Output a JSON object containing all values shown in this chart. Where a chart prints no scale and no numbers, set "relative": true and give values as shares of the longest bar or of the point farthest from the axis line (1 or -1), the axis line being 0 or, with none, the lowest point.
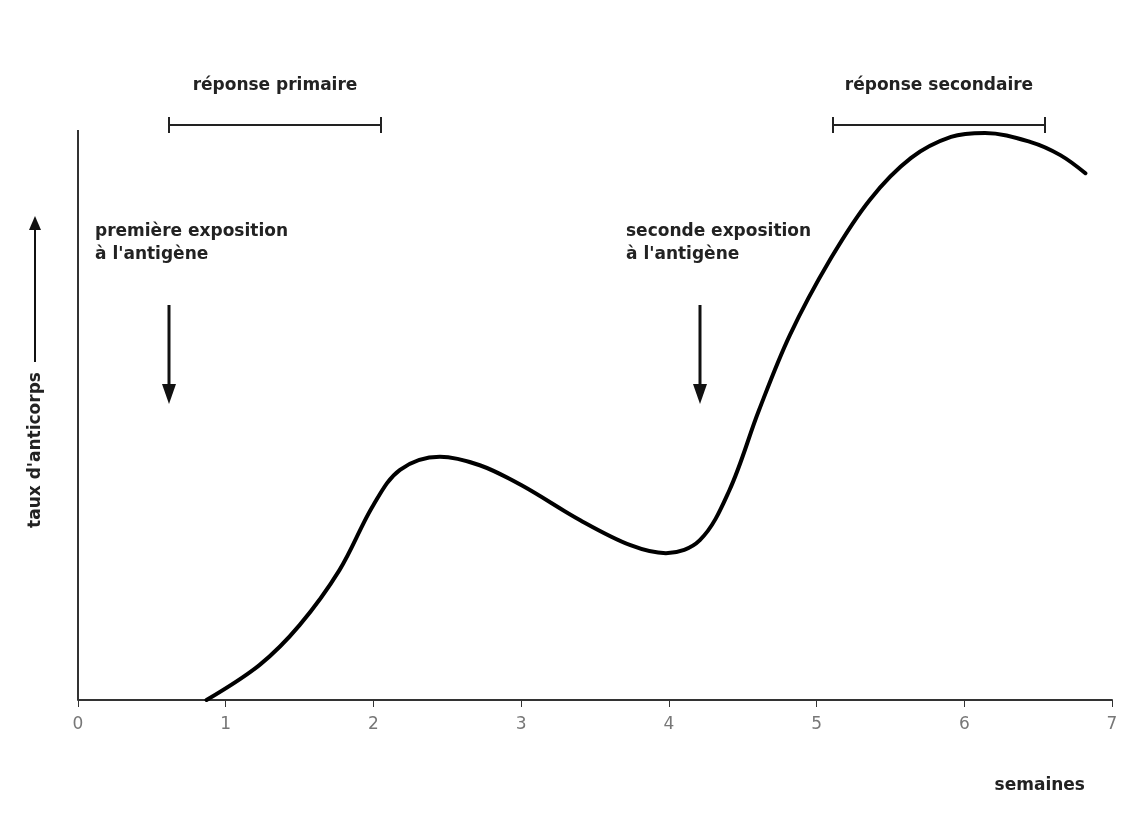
{
  "chart_data": {
    "type": "line",
    "relative": true,
    "xlabel": "semaines",
    "ylabel": "taux d'anticorps",
    "xlim": [
      0,
      7
    ],
    "xticks": [
      0,
      1,
      2,
      3,
      4,
      5,
      6,
      7
    ],
    "grid": false,
    "marker": "none",
    "line_style": "solid",
    "annotations": [
      "réponse primaire",
      "réponse secondaire",
      "première exposition\nà l'antigène",
      "seconde exposition\nà l'antigène"
    ],
    "series": [
      {
        "color": "#000000",
        "x": [
          0.87,
          1.23,
          1.5,
          1.77,
          2.0,
          2.18,
          2.45,
          2.72,
          3.0,
          3.4,
          3.74,
          3.98,
          4.21,
          4.41,
          4.61,
          4.82,
          5.09,
          5.36,
          5.64,
          5.91,
          6.14,
          6.45,
          6.65,
          6.82
        ],
        "values": [
          0,
          0.062,
          0.132,
          0.229,
          0.344,
          0.406,
          0.429,
          0.414,
          0.379,
          0.317,
          0.273,
          0.259,
          0.282,
          0.37,
          0.511,
          0.644,
          0.776,
          0.882,
          0.956,
          0.993,
          1.0,
          0.984,
          0.961,
          0.929
        ]
      }
    ]
  }
}
